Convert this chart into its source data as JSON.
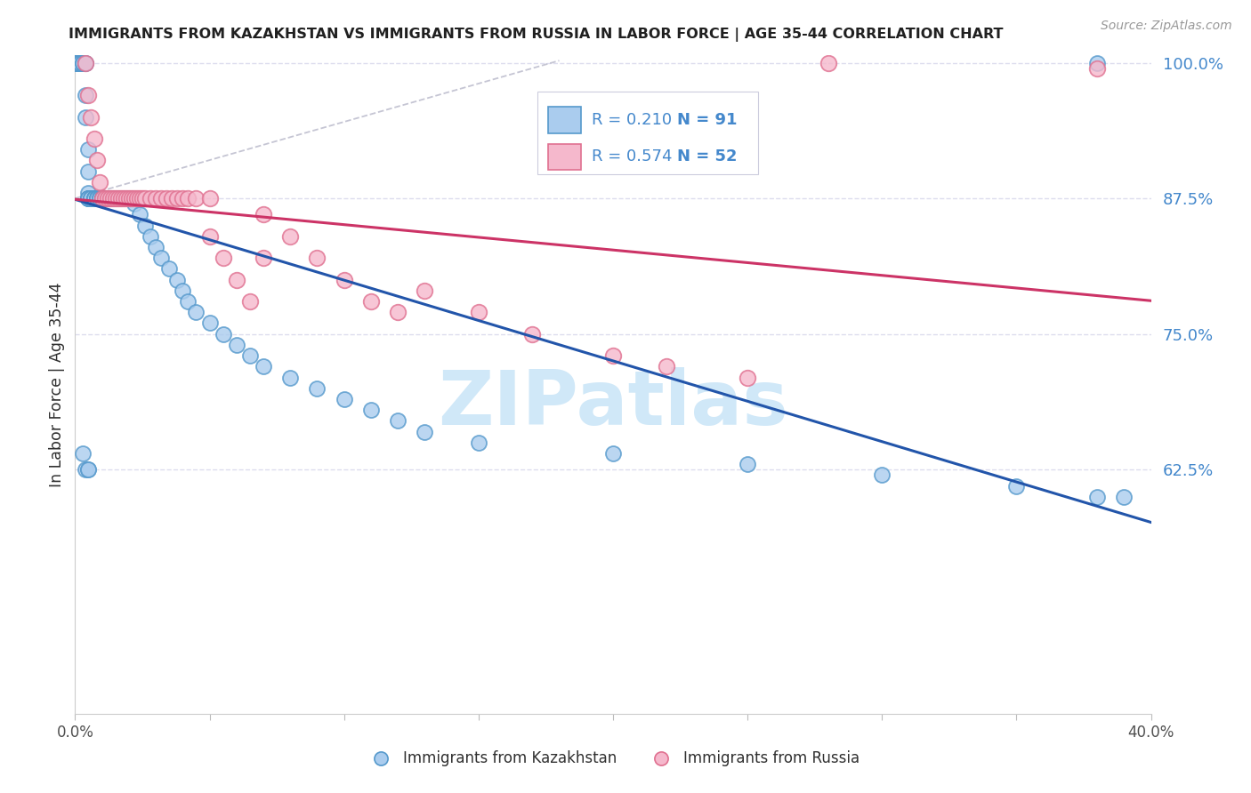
{
  "title": "IMMIGRANTS FROM KAZAKHSTAN VS IMMIGRANTS FROM RUSSIA IN LABOR FORCE | AGE 35-44 CORRELATION CHART",
  "source": "Source: ZipAtlas.com",
  "ylabel": "In Labor Force | Age 35-44",
  "xlim": [
    0.0,
    0.4
  ],
  "ylim": [
    0.4,
    1.0067
  ],
  "xtick_positions": [
    0.0,
    0.05,
    0.1,
    0.15,
    0.2,
    0.25,
    0.3,
    0.35,
    0.4
  ],
  "xticklabels": [
    "0.0%",
    "",
    "",
    "",
    "",
    "",
    "",
    "",
    "40.0%"
  ],
  "yticks_right": [
    1.0,
    0.875,
    0.75,
    0.625
  ],
  "yticklabels_right": [
    "100.0%",
    "87.5%",
    "75.0%",
    "62.5%"
  ],
  "kaz_R": 0.21,
  "kaz_N": 91,
  "rus_R": 0.574,
  "rus_N": 52,
  "kaz_face_color": "#aaccee",
  "kaz_edge_color": "#5599cc",
  "rus_face_color": "#f5b8cc",
  "rus_edge_color": "#e07090",
  "kaz_line_color": "#2255aa",
  "rus_line_color": "#cc3366",
  "ref_line_color": "#bbbbcc",
  "grid_color": "#ddddee",
  "bg_color": "#ffffff",
  "title_color": "#202020",
  "right_axis_color": "#4488cc",
  "source_color": "#999999",
  "watermark_text": "ZIPatlas",
  "watermark_color": "#d0e8f8",
  "legend_label_kaz": "Immigrants from Kazakhstan",
  "legend_label_rus": "Immigrants from Russia",
  "kaz_x": [
    0.0,
    0.0,
    0.0,
    0.001,
    0.001,
    0.002,
    0.002,
    0.002,
    0.003,
    0.003,
    0.003,
    0.004,
    0.004,
    0.004,
    0.004,
    0.005,
    0.005,
    0.005,
    0.005,
    0.005,
    0.005,
    0.005,
    0.006,
    0.006,
    0.006,
    0.007,
    0.007,
    0.007,
    0.007,
    0.007,
    0.008,
    0.008,
    0.008,
    0.008,
    0.009,
    0.009,
    0.009,
    0.01,
    0.01,
    0.01,
    0.01,
    0.01,
    0.011,
    0.011,
    0.012,
    0.012,
    0.013,
    0.013,
    0.014,
    0.015,
    0.015,
    0.016,
    0.017,
    0.018,
    0.019,
    0.02,
    0.021,
    0.022,
    0.024,
    0.026,
    0.028,
    0.03,
    0.032,
    0.035,
    0.038,
    0.04,
    0.042,
    0.045,
    0.05,
    0.055,
    0.06,
    0.065,
    0.07,
    0.08,
    0.09,
    0.1,
    0.11,
    0.12,
    0.13,
    0.15,
    0.2,
    0.25,
    0.3,
    0.35,
    0.38,
    0.39,
    0.003,
    0.004,
    0.005,
    0.005,
    0.38
  ],
  "kaz_y": [
    1.0,
    1.0,
    1.0,
    1.0,
    1.0,
    1.0,
    1.0,
    1.0,
    1.0,
    1.0,
    1.0,
    1.0,
    1.0,
    0.97,
    0.95,
    0.92,
    0.9,
    0.88,
    0.875,
    0.875,
    0.875,
    0.875,
    0.875,
    0.875,
    0.875,
    0.875,
    0.875,
    0.875,
    0.875,
    0.875,
    0.875,
    0.875,
    0.875,
    0.875,
    0.875,
    0.875,
    0.875,
    0.875,
    0.875,
    0.875,
    0.875,
    0.875,
    0.875,
    0.875,
    0.875,
    0.875,
    0.875,
    0.875,
    0.875,
    0.875,
    0.875,
    0.875,
    0.875,
    0.875,
    0.875,
    0.875,
    0.875,
    0.87,
    0.86,
    0.85,
    0.84,
    0.83,
    0.82,
    0.81,
    0.8,
    0.79,
    0.78,
    0.77,
    0.76,
    0.75,
    0.74,
    0.73,
    0.72,
    0.71,
    0.7,
    0.69,
    0.68,
    0.67,
    0.66,
    0.65,
    0.64,
    0.63,
    0.62,
    0.61,
    0.6,
    0.6,
    0.64,
    0.625,
    0.625,
    0.625,
    1.0
  ],
  "rus_x": [
    0.004,
    0.005,
    0.006,
    0.007,
    0.008,
    0.009,
    0.01,
    0.011,
    0.012,
    0.013,
    0.014,
    0.015,
    0.016,
    0.017,
    0.018,
    0.019,
    0.02,
    0.021,
    0.022,
    0.023,
    0.024,
    0.025,
    0.026,
    0.028,
    0.03,
    0.032,
    0.034,
    0.036,
    0.038,
    0.04,
    0.042,
    0.045,
    0.05,
    0.055,
    0.06,
    0.065,
    0.07,
    0.08,
    0.09,
    0.1,
    0.11,
    0.12,
    0.13,
    0.15,
    0.17,
    0.2,
    0.22,
    0.25,
    0.05,
    0.07,
    0.28,
    0.38
  ],
  "rus_y": [
    1.0,
    0.97,
    0.95,
    0.93,
    0.91,
    0.89,
    0.875,
    0.875,
    0.875,
    0.875,
    0.875,
    0.875,
    0.875,
    0.875,
    0.875,
    0.875,
    0.875,
    0.875,
    0.875,
    0.875,
    0.875,
    0.875,
    0.875,
    0.875,
    0.875,
    0.875,
    0.875,
    0.875,
    0.875,
    0.875,
    0.875,
    0.875,
    0.875,
    0.82,
    0.8,
    0.78,
    0.86,
    0.84,
    0.82,
    0.8,
    0.78,
    0.77,
    0.79,
    0.77,
    0.75,
    0.73,
    0.72,
    0.71,
    0.84,
    0.82,
    1.0,
    0.995
  ]
}
